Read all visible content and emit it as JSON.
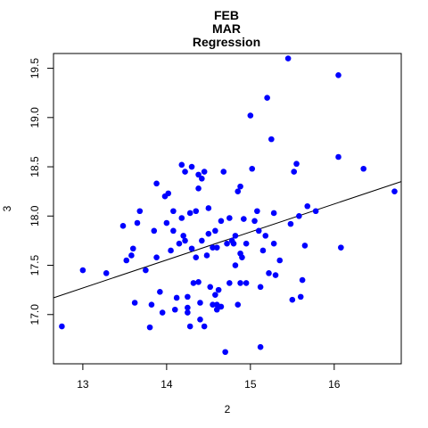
{
  "chart_data": {
    "type": "scatter",
    "title": [
      "FEB",
      "MAR",
      "Regression"
    ],
    "xlabel": "2",
    "ylabel": "3",
    "xlim": [
      12.65,
      16.8
    ],
    "ylim": [
      16.5,
      19.65
    ],
    "xticks": [
      13,
      14,
      15,
      16
    ],
    "yticks": [
      17.0,
      17.5,
      18.0,
      18.5,
      19.0,
      19.5
    ],
    "ytick_labels": [
      "17.0",
      "17.5",
      "18.0",
      "18.5",
      "19.0",
      "19.5"
    ],
    "grid": false,
    "legend": "none",
    "point_color": "#0000ff",
    "line_color": "#000000",
    "regression": {
      "x": [
        12.65,
        16.8
      ],
      "y": [
        17.17,
        18.35
      ]
    },
    "points": [
      [
        12.75,
        16.88
      ],
      [
        13.0,
        17.45
      ],
      [
        13.28,
        17.42
      ],
      [
        13.48,
        17.9
      ],
      [
        13.52,
        17.55
      ],
      [
        13.58,
        17.6
      ],
      [
        13.6,
        17.67
      ],
      [
        13.62,
        17.12
      ],
      [
        13.65,
        17.93
      ],
      [
        13.68,
        18.05
      ],
      [
        13.75,
        17.45
      ],
      [
        13.8,
        16.87
      ],
      [
        13.82,
        17.1
      ],
      [
        13.85,
        17.85
      ],
      [
        13.88,
        17.58
      ],
      [
        13.88,
        18.33
      ],
      [
        13.92,
        17.23
      ],
      [
        13.95,
        17.02
      ],
      [
        13.98,
        18.2
      ],
      [
        14.0,
        17.93
      ],
      [
        14.02,
        18.23
      ],
      [
        14.05,
        17.65
      ],
      [
        14.08,
        17.85
      ],
      [
        14.08,
        18.05
      ],
      [
        14.1,
        17.05
      ],
      [
        14.12,
        17.17
      ],
      [
        14.15,
        17.72
      ],
      [
        14.18,
        17.98
      ],
      [
        14.18,
        18.52
      ],
      [
        14.2,
        17.8
      ],
      [
        14.22,
        18.45
      ],
      [
        14.22,
        17.75
      ],
      [
        14.25,
        17.07
      ],
      [
        14.25,
        17.02
      ],
      [
        14.25,
        17.18
      ],
      [
        14.28,
        16.88
      ],
      [
        14.28,
        18.03
      ],
      [
        14.3,
        17.67
      ],
      [
        14.3,
        18.5
      ],
      [
        14.32,
        17.32
      ],
      [
        14.35,
        18.05
      ],
      [
        14.35,
        17.58
      ],
      [
        14.38,
        17.33
      ],
      [
        14.38,
        18.28
      ],
      [
        14.38,
        18.42
      ],
      [
        14.4,
        17.12
      ],
      [
        14.4,
        16.95
      ],
      [
        14.42,
        18.38
      ],
      [
        14.42,
        17.75
      ],
      [
        14.45,
        16.88
      ],
      [
        14.45,
        18.45
      ],
      [
        14.48,
        17.6
      ],
      [
        14.5,
        17.82
      ],
      [
        14.5,
        18.08
      ],
      [
        14.52,
        17.28
      ],
      [
        14.55,
        17.1
      ],
      [
        14.55,
        17.68
      ],
      [
        14.58,
        17.85
      ],
      [
        14.58,
        17.2
      ],
      [
        14.6,
        17.05
      ],
      [
        14.6,
        17.1
      ],
      [
        14.6,
        17.68
      ],
      [
        14.62,
        17.25
      ],
      [
        14.65,
        17.95
      ],
      [
        14.65,
        17.08
      ],
      [
        14.68,
        18.45
      ],
      [
        14.7,
        16.62
      ],
      [
        14.72,
        17.72
      ],
      [
        14.75,
        17.32
      ],
      [
        14.75,
        17.98
      ],
      [
        14.78,
        17.75
      ],
      [
        14.8,
        17.72
      ],
      [
        14.82,
        17.8
      ],
      [
        14.82,
        17.5
      ],
      [
        14.85,
        18.25
      ],
      [
        14.85,
        17.1
      ],
      [
        14.88,
        18.3
      ],
      [
        14.88,
        17.62
      ],
      [
        14.88,
        17.32
      ],
      [
        14.9,
        17.58
      ],
      [
        14.92,
        17.97
      ],
      [
        14.95,
        17.72
      ],
      [
        14.95,
        17.32
      ],
      [
        15.0,
        19.02
      ],
      [
        15.02,
        18.48
      ],
      [
        15.05,
        17.95
      ],
      [
        15.08,
        18.05
      ],
      [
        15.1,
        17.85
      ],
      [
        15.12,
        16.67
      ],
      [
        15.12,
        17.28
      ],
      [
        15.15,
        17.65
      ],
      [
        15.18,
        17.8
      ],
      [
        15.2,
        19.2
      ],
      [
        15.22,
        17.42
      ],
      [
        15.25,
        18.78
      ],
      [
        15.28,
        17.72
      ],
      [
        15.28,
        18.03
      ],
      [
        15.3,
        17.4
      ],
      [
        15.35,
        17.55
      ],
      [
        15.45,
        19.6
      ],
      [
        15.48,
        17.92
      ],
      [
        15.5,
        17.15
      ],
      [
        15.52,
        18.45
      ],
      [
        15.55,
        18.53
      ],
      [
        15.58,
        18.0
      ],
      [
        15.6,
        17.18
      ],
      [
        15.62,
        17.35
      ],
      [
        15.65,
        17.7
      ],
      [
        15.68,
        18.1
      ],
      [
        15.78,
        18.05
      ],
      [
        16.05,
        18.6
      ],
      [
        16.05,
        19.43
      ],
      [
        16.08,
        17.68
      ],
      [
        16.35,
        18.48
      ],
      [
        16.72,
        18.25
      ]
    ]
  }
}
